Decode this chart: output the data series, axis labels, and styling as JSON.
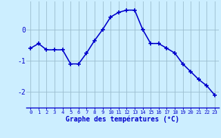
{
  "x": [
    0,
    1,
    2,
    3,
    4,
    5,
    6,
    7,
    8,
    9,
    10,
    11,
    12,
    13,
    14,
    15,
    16,
    17,
    18,
    19,
    20,
    21,
    22,
    23
  ],
  "y": [
    -0.6,
    -0.45,
    -0.65,
    -0.65,
    -0.65,
    -1.1,
    -1.1,
    -0.75,
    -0.35,
    0.0,
    0.4,
    0.55,
    0.62,
    0.62,
    0.0,
    -0.45,
    -0.45,
    -0.6,
    -0.75,
    -1.1,
    -1.35,
    -1.6,
    -1.8,
    -2.1
  ],
  "line_color": "#0000cc",
  "marker": "+",
  "marker_size": 4,
  "line_width": 1.2,
  "bg_color": "#cceeff",
  "grid_color": "#99bbcc",
  "axis_label_color": "#0000cc",
  "tick_color": "#0000cc",
  "xlabel": "Graphe des températures (°C)",
  "ylim": [
    -2.5,
    0.9
  ],
  "yticks": [
    -2,
    -1,
    0
  ],
  "xticks": [
    0,
    1,
    2,
    3,
    4,
    5,
    6,
    7,
    8,
    9,
    10,
    11,
    12,
    13,
    14,
    15,
    16,
    17,
    18,
    19,
    20,
    21,
    22,
    23
  ]
}
